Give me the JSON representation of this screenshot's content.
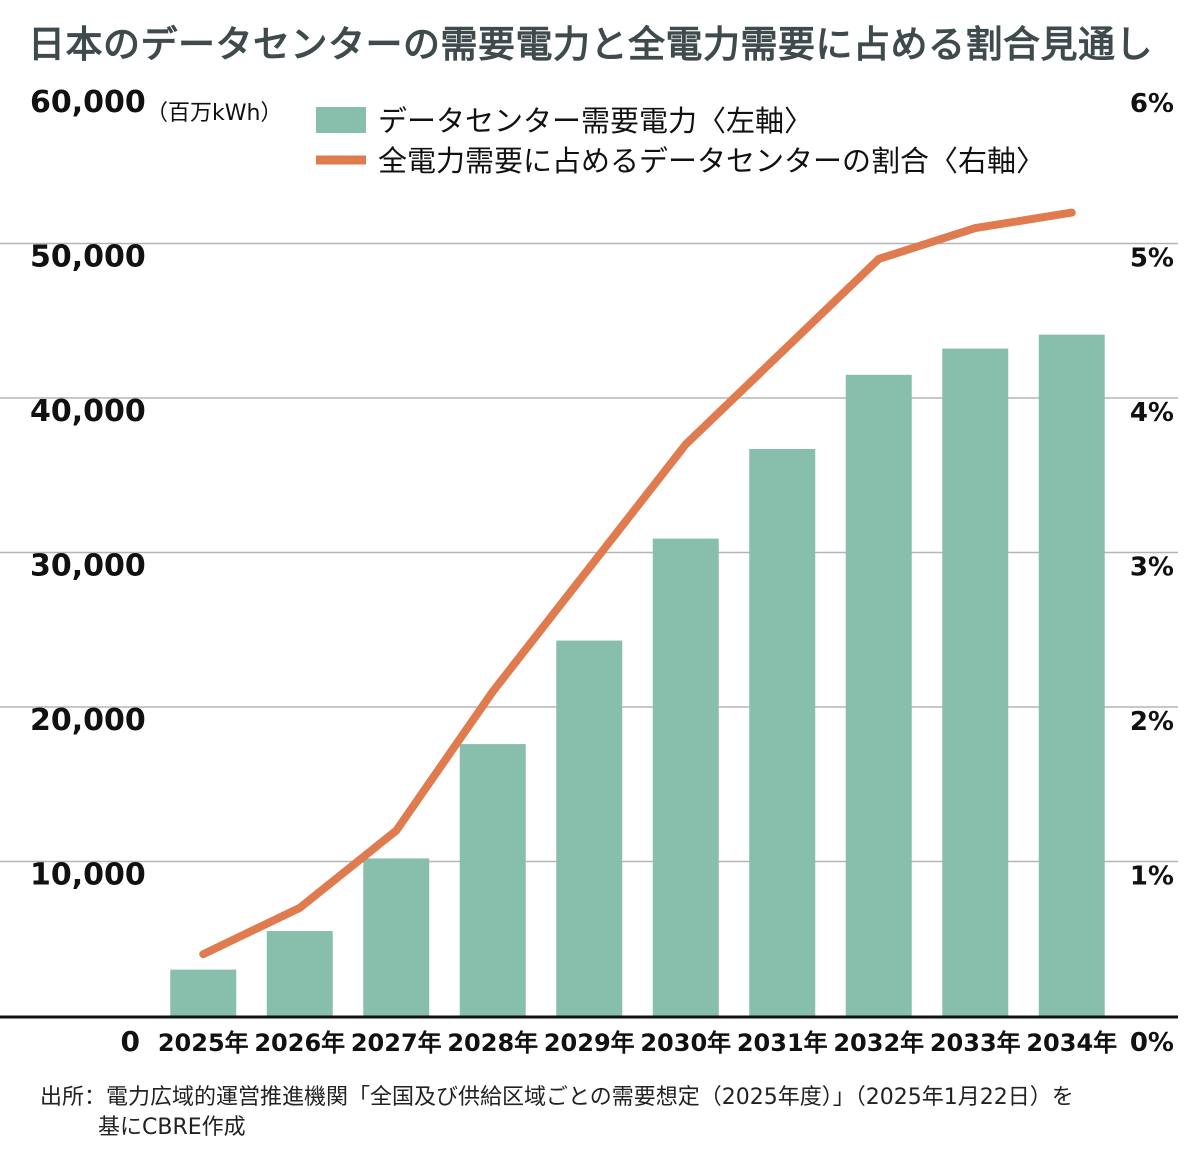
{
  "title": "日本のデータセンターの需要電力と全電力需要に占める割合見通し",
  "source": {
    "label": "出所：",
    "line1": "電力広域的運営推進機関「全国及び供給区域ごとの需要想定（2025年度）」（2025年1月22日）を",
    "line2": "基にCBRE作成"
  },
  "colors": {
    "bar": "#87bfac",
    "line": "#e07a4f",
    "grid": "#b5b5b5",
    "axis": "#111111"
  },
  "chart_data": {
    "type": "bar+line",
    "categories": [
      "2025年",
      "2026年",
      "2027年",
      "2028年",
      "2029年",
      "2030年",
      "2031年",
      "2032年",
      "2033年",
      "2034年"
    ],
    "series": [
      {
        "name": "データセンター需要電力〈左軸〉",
        "axis": "left",
        "type": "bar",
        "values": [
          3000,
          5500,
          10200,
          17600,
          24300,
          30900,
          36700,
          41500,
          43200,
          44100
        ]
      },
      {
        "name": "全電力需要に占めるデータセンターの割合〈右軸〉",
        "axis": "right",
        "type": "line",
        "values": [
          0.4,
          0.7,
          1.2,
          2.1,
          2.9,
          3.7,
          4.3,
          4.9,
          5.1,
          5.2
        ]
      }
    ],
    "left_axis": {
      "unit_label": "（百万kWh）",
      "ylim": [
        0,
        60000
      ],
      "ticks": [
        "0",
        "10,000",
        "20,000",
        "30,000",
        "40,000",
        "50,000",
        "60,000"
      ]
    },
    "right_axis": {
      "ylim": [
        0,
        6
      ],
      "ticks": [
        "0%",
        "1%",
        "2%",
        "3%",
        "4%",
        "5%",
        "6%"
      ]
    },
    "grid": true,
    "legend_position": "top"
  }
}
